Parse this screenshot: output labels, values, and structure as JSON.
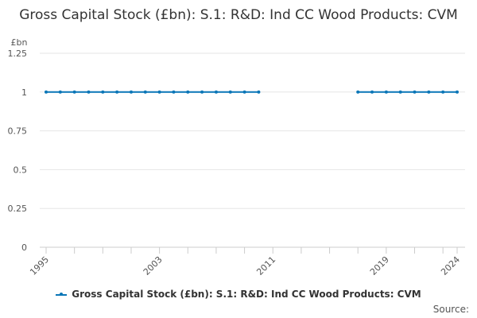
{
  "chart_data": {
    "type": "line",
    "title": "Gross Capital Stock (£bn): S.1: R&D: Ind CC Wood Products: CVM",
    "ylabel": "£bn",
    "xlabel": "",
    "ylim": [
      0,
      1.25
    ],
    "xlim": [
      1995,
      2024
    ],
    "y_ticks": [
      "0",
      "0.25",
      "0.5",
      "0.75",
      "1",
      "1.25"
    ],
    "x_tick_labels": [
      "1995",
      "2003",
      "2011",
      "2019",
      "2024"
    ],
    "grid": true,
    "legend_position": "bottom",
    "series": [
      {
        "name": "Gross Capital Stock (£bn): S.1: R&D: Ind CC Wood Products: CVM",
        "color": "#0a76b7",
        "segments": [
          {
            "x": [
              1995,
              1996,
              1997,
              1998,
              1999,
              2000,
              2001,
              2002,
              2003,
              2004,
              2005,
              2006,
              2007,
              2008,
              2009,
              2010
            ],
            "y": [
              1,
              1,
              1,
              1,
              1,
              1,
              1,
              1,
              1,
              1,
              1,
              1,
              1,
              1,
              1,
              1
            ]
          },
          {
            "x": [
              2017,
              2018,
              2019,
              2020,
              2021,
              2022,
              2023,
              2024
            ],
            "y": [
              1,
              1,
              1,
              1,
              1,
              1,
              1,
              1
            ]
          }
        ]
      }
    ]
  },
  "source_label": "Source:"
}
